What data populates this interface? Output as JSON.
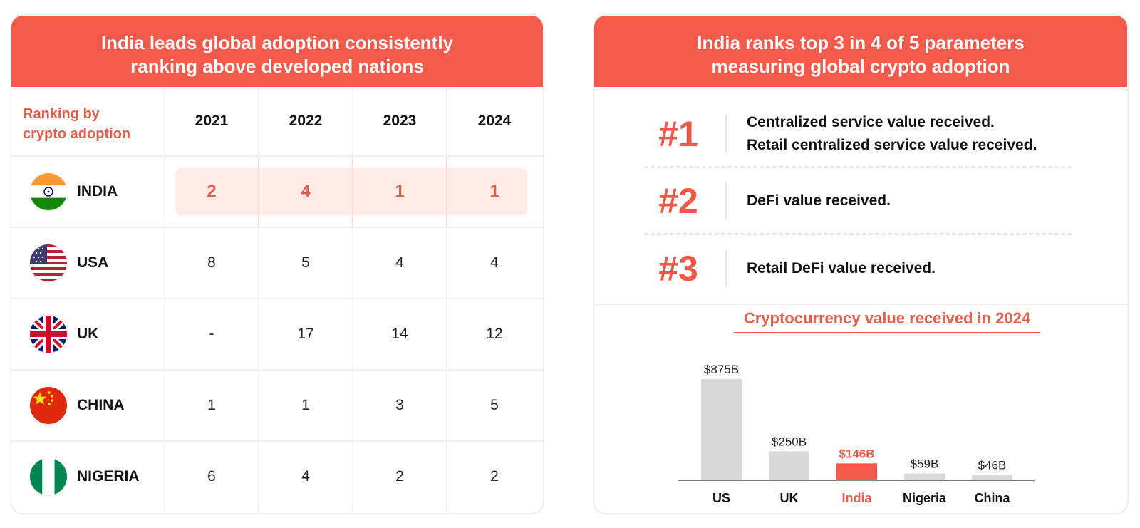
{
  "left_card": {
    "title_line1": "India leads global adoption consistently",
    "title_line2": "ranking above developed nations",
    "corner_line1": "Ranking by",
    "corner_line2": "crypto adoption",
    "years": [
      "2021",
      "2022",
      "2023",
      "2024"
    ],
    "rows": [
      {
        "country": "INDIA",
        "ranks": [
          "2",
          "4",
          "1",
          "1"
        ]
      },
      {
        "country": "USA",
        "ranks": [
          "8",
          "5",
          "4",
          "4"
        ]
      },
      {
        "country": "UK",
        "ranks": [
          "-",
          "17",
          "14",
          "12"
        ]
      },
      {
        "country": "CHINA",
        "ranks": [
          "1",
          "1",
          "3",
          "5"
        ]
      },
      {
        "country": "NIGERIA",
        "ranks": [
          "6",
          "4",
          "2",
          "2"
        ]
      }
    ]
  },
  "right_card": {
    "title_line1": "India ranks top 3 in 4 of 5 parameters",
    "title_line2": "measuring global crypto adoption",
    "params": [
      {
        "rank": "#1",
        "lines": [
          "Centralized service value received.",
          "Retail centralized service value received."
        ]
      },
      {
        "rank": "#2",
        "lines": [
          "DeFi value received."
        ]
      },
      {
        "rank": "#3",
        "lines": [
          "Retail DeFi value received."
        ]
      }
    ]
  },
  "chart_data": {
    "type": "bar",
    "title": "Cryptocurrency value received in 2024",
    "categories": [
      "US",
      "UK",
      "India",
      "Nigeria",
      "China"
    ],
    "values": [
      875,
      250,
      146,
      59,
      46
    ],
    "value_labels": [
      "$875B",
      "$250B",
      "$146B",
      "$59B",
      "$46B"
    ],
    "unit": "B USD",
    "highlight": "India",
    "colors": {
      "bar": "#d9d9d9",
      "highlight": "#f25a4b"
    },
    "xlabel": "",
    "ylabel": "",
    "ylim": [
      0,
      875
    ],
    "grid": false
  },
  "colors": {
    "accent": "#f25a4b",
    "accent_text": "#e0604f",
    "highlight_bg": "#fdebe7"
  }
}
